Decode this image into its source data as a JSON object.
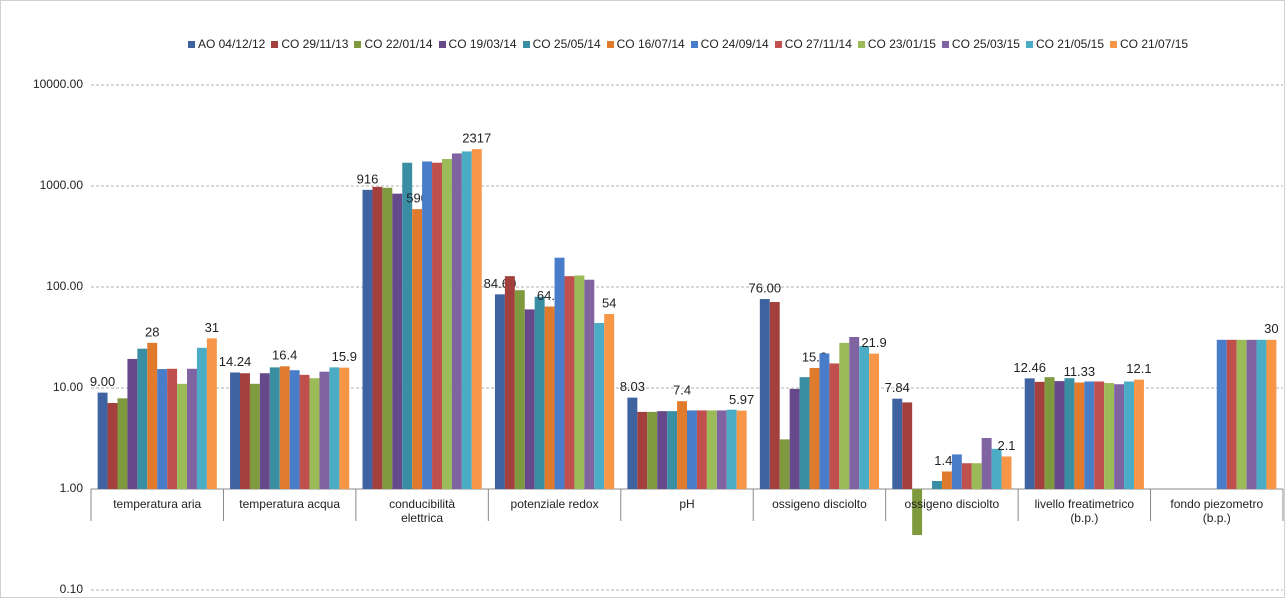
{
  "chart_data": {
    "type": "bar",
    "log_scale": true,
    "grid": true,
    "legend_position": "top",
    "categories": [
      "temperatura aria",
      "temperatura acqua",
      "conducibilità\nelettrica",
      "potenziale redox",
      "pH",
      "ossigeno disciolto",
      "ossigeno disciolto",
      "livello freatimetrico\n(b.p.)",
      "fondo piezometro\n(b.p.)"
    ],
    "ylim": [
      0.1,
      10000
    ],
    "yticks": [
      {
        "value": 0.1,
        "label": "0.10"
      },
      {
        "value": 1,
        "label": "1.00"
      },
      {
        "value": 10,
        "label": "10.00"
      },
      {
        "value": 100,
        "label": "100.00"
      },
      {
        "value": 1000,
        "label": "1000.00"
      },
      {
        "value": 10000,
        "label": "10000.00"
      }
    ],
    "series": [
      {
        "name": "AO  04/12/12",
        "color": "#3f62a0",
        "values": [
          9,
          14.24,
          916,
          84.6,
          8.03,
          76,
          7.84,
          12.46,
          null
        ],
        "value_labels": [
          "9.00",
          "14.24",
          "916",
          "84.60",
          "8.03",
          "76.00",
          "7.84",
          "12.46",
          null
        ]
      },
      {
        "name": "CO 29/11/13",
        "color": "#a33f3c",
        "values": [
          7.1,
          14,
          980,
          128,
          5.8,
          71,
          7.2,
          11.5,
          null
        ]
      },
      {
        "name": "CO 22/01/14",
        "color": "#7f9a3e",
        "values": [
          7.9,
          11,
          960,
          93,
          5.8,
          3.1,
          0.35,
          12.8,
          null
        ]
      },
      {
        "name": "CO 19/03/14",
        "color": "#66498a",
        "values": [
          19.4,
          14,
          840,
          60,
          5.9,
          9.8,
          1.0,
          11.7,
          null
        ]
      },
      {
        "name": "CO 25/05/14",
        "color": "#3a8ea3",
        "values": [
          24.5,
          16,
          1700,
          80,
          5.9,
          12.8,
          1.2,
          12.5,
          null
        ]
      },
      {
        "name": "CO 16/07/14",
        "color": "#e07b2e",
        "values": [
          28,
          16.4,
          590,
          64.1,
          7.4,
          15.8,
          1.49,
          11.33,
          null
        ],
        "value_labels": [
          "28",
          "16.4",
          "590",
          "64.1",
          "7.4",
          "15.8",
          "1.49",
          "11.33",
          null
        ]
      },
      {
        "name": "CO 24/09/14",
        "color": "#4a7dc9",
        "values": [
          15.4,
          15,
          1750,
          195,
          6,
          22,
          2.2,
          11.6,
          30
        ]
      },
      {
        "name": "CO 27/11/14",
        "color": "#c0504d",
        "values": [
          15.5,
          13.5,
          1700,
          128,
          6,
          17.5,
          1.8,
          11.6,
          30
        ]
      },
      {
        "name": "CO 23/01/15",
        "color": "#9bbb59",
        "values": [
          11,
          12.5,
          1850,
          130,
          6,
          28,
          1.8,
          11.2,
          30
        ]
      },
      {
        "name": "CO 25/03/15",
        "color": "#8064a2",
        "values": [
          15.5,
          14.5,
          2100,
          118,
          6,
          32,
          3.2,
          10.9,
          30
        ]
      },
      {
        "name": "CO 21/05/15",
        "color": "#4bacc6",
        "values": [
          25,
          16,
          2200,
          44,
          6.1,
          26,
          2.5,
          11.6,
          30
        ]
      },
      {
        "name": "CO 21/07/15",
        "color": "#f79646",
        "values": [
          31,
          15.9,
          2317,
          54,
          5.97,
          21.9,
          2.1,
          12.1,
          30
        ],
        "value_labels": [
          "31",
          "15.9",
          "2317",
          "54",
          "5.97",
          "21.9",
          "2.1",
          "12.1",
          "30"
        ]
      }
    ]
  }
}
